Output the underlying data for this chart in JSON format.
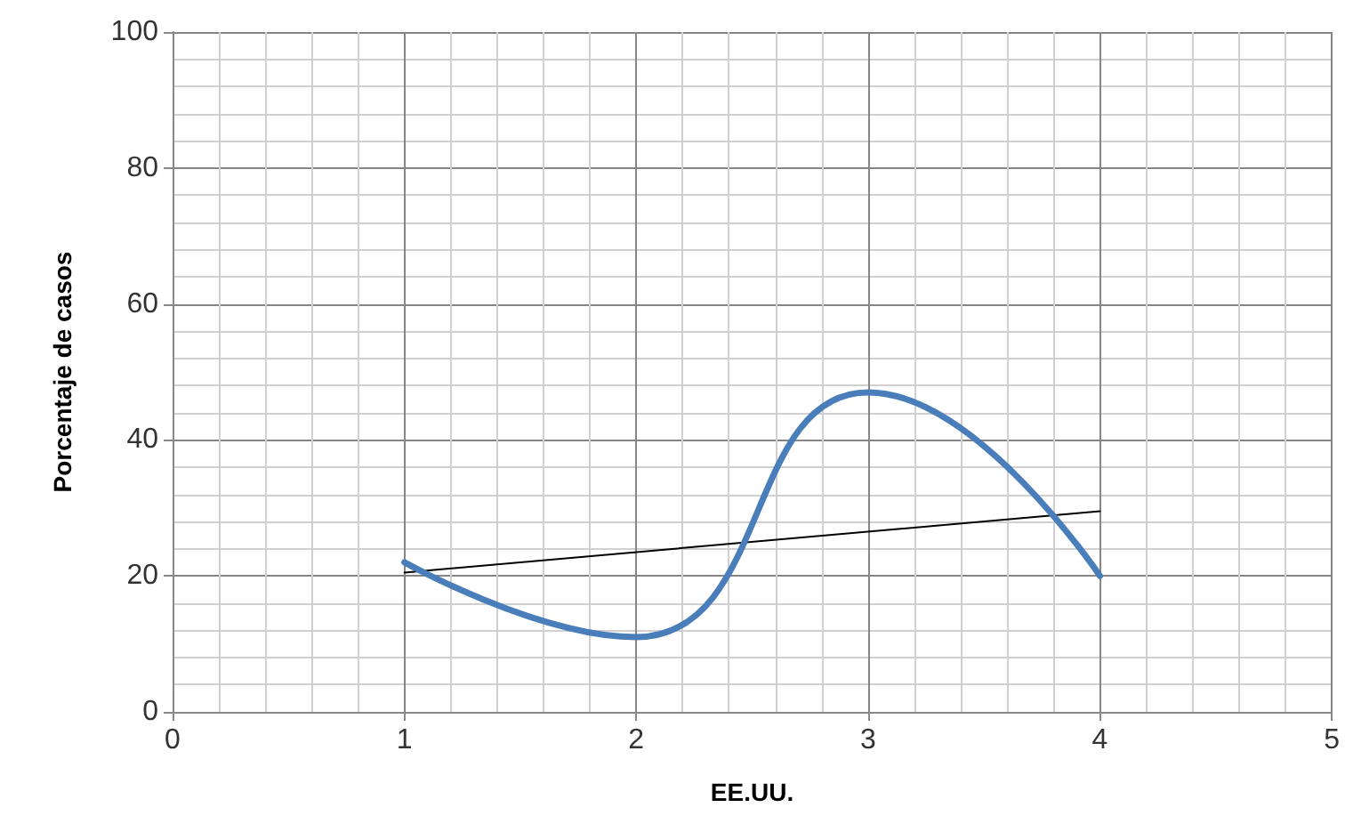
{
  "chart_data": {
    "type": "line",
    "xlabel": "EE.UU.",
    "ylabel": "Porcentaje de casos",
    "x": [
      1,
      2,
      3,
      4
    ],
    "series": [
      {
        "color": "#4a7ebb",
        "values": [
          22,
          11,
          47,
          20
        ]
      },
      {
        "type": "line",
        "x": [
          1,
          4
        ],
        "color": "#000000",
        "values": [
          20.5,
          29.5
        ]
      }
    ],
    "xlim": [
      0,
      5
    ],
    "xticks": [
      0,
      1,
      2,
      3,
      4,
      5
    ],
    "ylim": [
      0,
      100
    ],
    "yticks": [
      0,
      20,
      40,
      60,
      80,
      100
    ],
    "grid": true,
    "marker": "none",
    "line_style": "solid"
  }
}
